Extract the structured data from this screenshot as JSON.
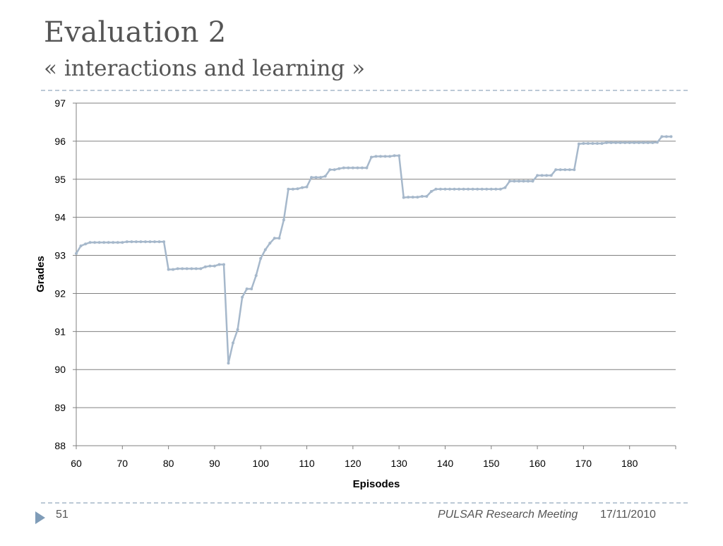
{
  "slide": {
    "title": "Evaluation 2",
    "subtitle": "« interactions and learning »"
  },
  "footer": {
    "page_number": "51",
    "meeting": "PULSAR Research Meeting",
    "date": "17/11/2010"
  },
  "colors": {
    "series": "#a6b8cb",
    "grid": "#808080",
    "text": "#555555",
    "divider": "#bcc9d6",
    "arrow": "#7f9cb8"
  },
  "chart_data": {
    "type": "line",
    "title": "",
    "xlabel": "Episodes",
    "ylabel": "Grades",
    "xlim": [
      60,
      190
    ],
    "ylim": [
      88,
      97
    ],
    "x_ticks": [
      60,
      70,
      80,
      90,
      100,
      110,
      120,
      130,
      140,
      150,
      160,
      170,
      180
    ],
    "y_ticks": [
      88,
      89,
      90,
      91,
      92,
      93,
      94,
      95,
      96,
      97
    ],
    "grid": "horizontal",
    "legend": "none",
    "series": [
      {
        "x": [
          60,
          61,
          62,
          63,
          64,
          65,
          66,
          67,
          68,
          69,
          70,
          71,
          72,
          73,
          74,
          75,
          76,
          77,
          78,
          79,
          80,
          81,
          82,
          83,
          84,
          85,
          86,
          87,
          88,
          89,
          90,
          91,
          92,
          93,
          94,
          95,
          96,
          97,
          98,
          99,
          100,
          101,
          102,
          103,
          104,
          105,
          106,
          107,
          108,
          109,
          110,
          111,
          112,
          113,
          114,
          115,
          116,
          117,
          118,
          119,
          120,
          121,
          122,
          123,
          124,
          125,
          126,
          127,
          128,
          129,
          130,
          131,
          132,
          133,
          134,
          135,
          136,
          137,
          138,
          139,
          140,
          141,
          142,
          143,
          144,
          145,
          146,
          147,
          148,
          149,
          150,
          151,
          152,
          153,
          154,
          155,
          156,
          157,
          158,
          159,
          160,
          161,
          162,
          163,
          164,
          165,
          166,
          167,
          168,
          169,
          170,
          171,
          172,
          173,
          174,
          175,
          176,
          177,
          178,
          179,
          180,
          181,
          182,
          183,
          184,
          185,
          186,
          187,
          188,
          189
        ],
        "y": [
          93.05,
          93.25,
          93.3,
          93.34,
          93.34,
          93.34,
          93.34,
          93.34,
          93.34,
          93.34,
          93.34,
          93.36,
          93.36,
          93.36,
          93.36,
          93.36,
          93.36,
          93.36,
          93.36,
          93.36,
          92.63,
          92.63,
          92.65,
          92.65,
          92.65,
          92.65,
          92.65,
          92.65,
          92.7,
          92.72,
          92.72,
          92.76,
          92.76,
          90.17,
          90.7,
          91.05,
          91.9,
          92.12,
          92.12,
          92.47,
          92.92,
          93.15,
          93.32,
          93.45,
          93.45,
          93.93,
          94.74,
          94.74,
          94.75,
          94.78,
          94.8,
          95.05,
          95.05,
          95.05,
          95.08,
          95.25,
          95.25,
          95.28,
          95.3,
          95.3,
          95.3,
          95.3,
          95.3,
          95.3,
          95.58,
          95.6,
          95.6,
          95.6,
          95.6,
          95.62,
          95.62,
          94.52,
          94.53,
          94.53,
          94.53,
          94.55,
          94.55,
          94.68,
          94.74,
          94.74,
          94.74,
          94.74,
          94.74,
          94.74,
          94.74,
          94.74,
          94.74,
          94.74,
          94.74,
          94.74,
          94.74,
          94.74,
          94.74,
          94.78,
          94.95,
          94.95,
          94.95,
          94.95,
          94.95,
          94.95,
          95.1,
          95.1,
          95.1,
          95.1,
          95.25,
          95.25,
          95.25,
          95.25,
          95.25,
          95.93,
          95.94,
          95.94,
          95.94,
          95.94,
          95.94,
          95.96,
          95.96,
          95.96,
          95.96,
          95.96,
          95.96,
          95.96,
          95.96,
          95.96,
          95.96,
          95.96,
          95.97,
          96.12,
          96.12,
          96.12
        ]
      }
    ]
  }
}
